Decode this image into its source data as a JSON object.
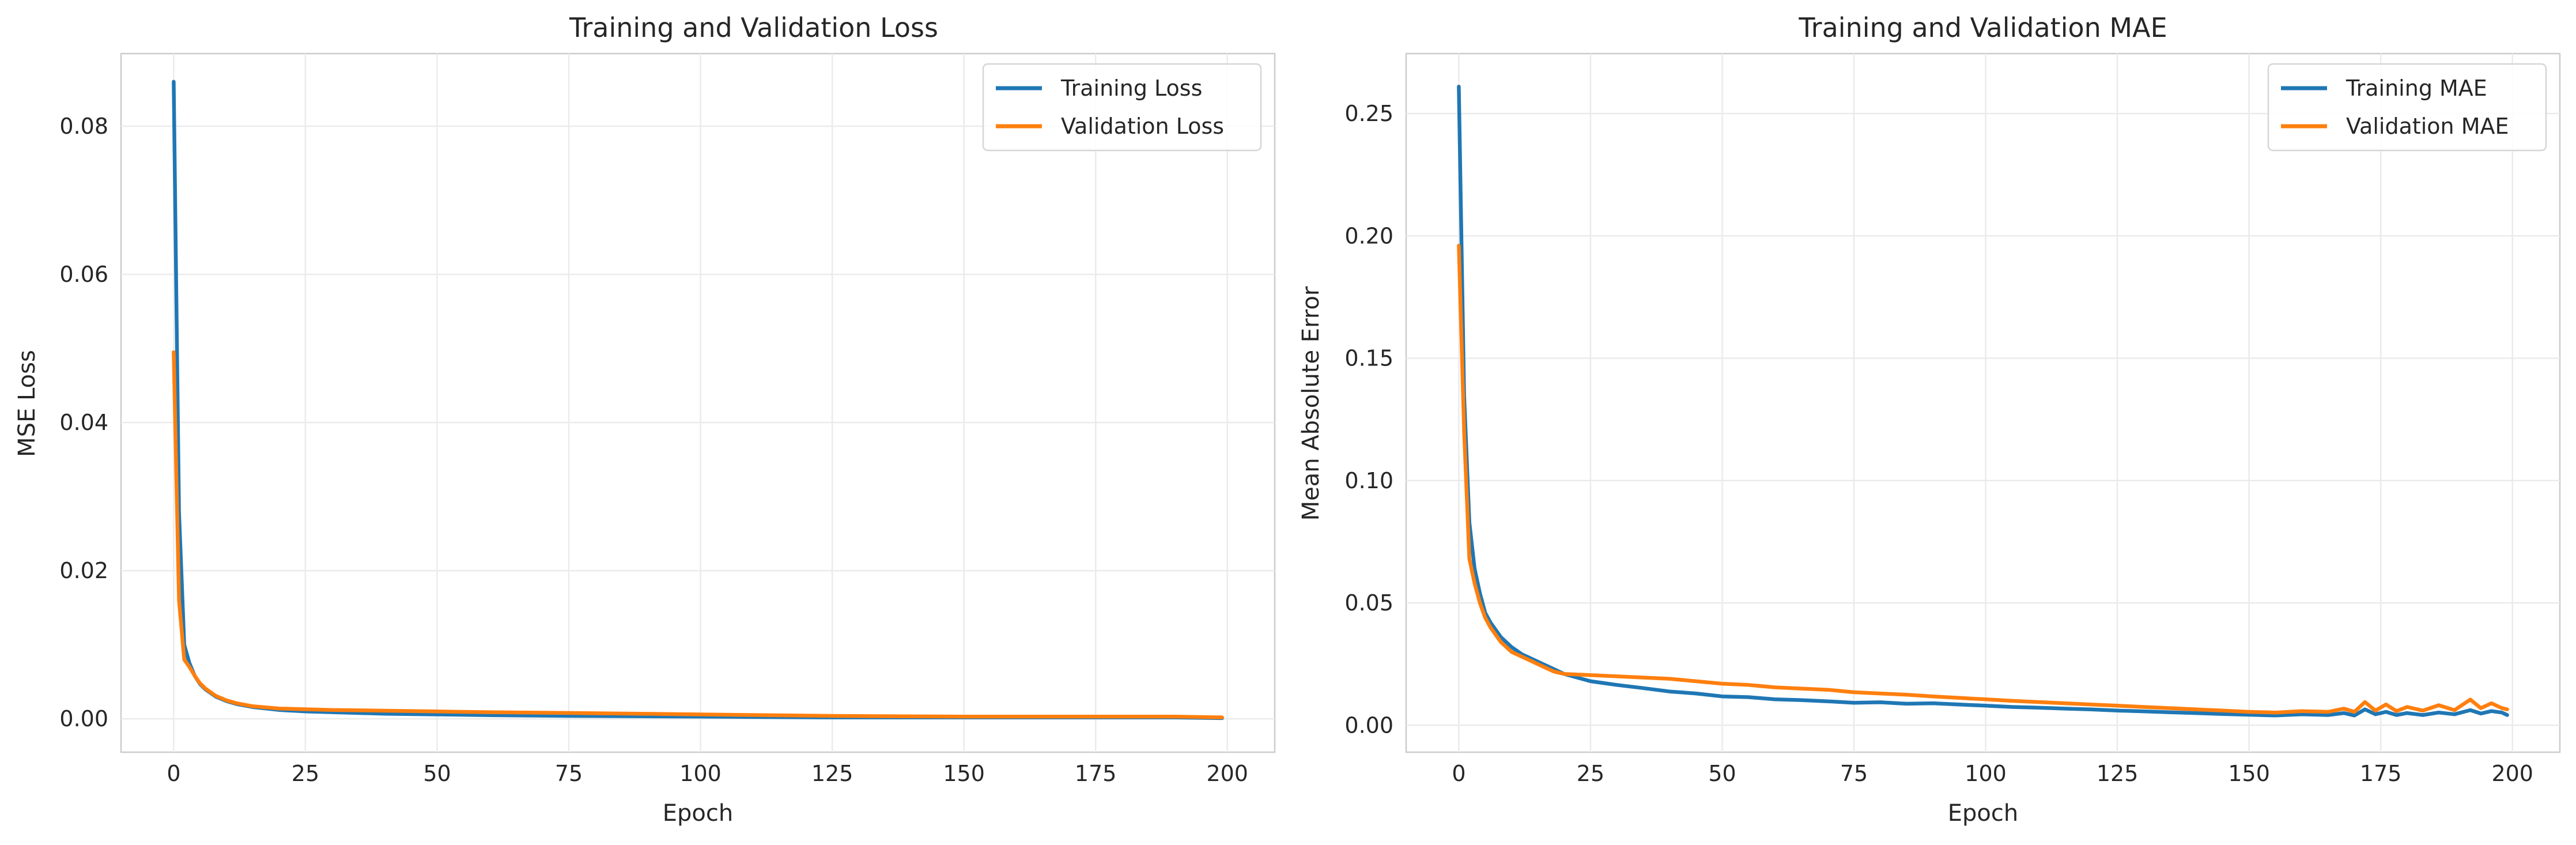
{
  "chart_data": [
    {
      "type": "line",
      "title": "Training and Validation Loss",
      "xlabel": "Epoch",
      "ylabel": "MSE Loss",
      "xlim": [
        -10,
        209
      ],
      "ylim": [
        -0.0045,
        0.0898
      ],
      "xticks": [
        0,
        25,
        50,
        75,
        100,
        125,
        150,
        175,
        200
      ],
      "yticks": [
        0.0,
        0.02,
        0.04,
        0.06,
        0.08
      ],
      "ytick_labels": [
        "0.00",
        "0.02",
        "0.04",
        "0.06",
        "0.08"
      ],
      "grid": true,
      "legend_loc": "upper right",
      "series": [
        {
          "name": "Training Loss",
          "color": "#1f77b4",
          "points": [
            [
              0,
              0.086
            ],
            [
              1,
              0.028
            ],
            [
              2,
              0.01
            ],
            [
              3,
              0.0075
            ],
            [
              4,
              0.0058
            ],
            [
              5,
              0.0047
            ],
            [
              6,
              0.004
            ],
            [
              8,
              0.003
            ],
            [
              10,
              0.0024
            ],
            [
              12,
              0.002
            ],
            [
              15,
              0.0016
            ],
            [
              20,
              0.0012
            ],
            [
              25,
              0.001
            ],
            [
              30,
              0.0009
            ],
            [
              40,
              0.0007
            ],
            [
              50,
              0.0006
            ],
            [
              60,
              0.0005
            ],
            [
              75,
              0.0004
            ],
            [
              100,
              0.0003
            ],
            [
              125,
              0.0002
            ],
            [
              150,
              0.0002
            ],
            [
              175,
              0.0002
            ],
            [
              190,
              0.0002
            ],
            [
              199,
              0.0001
            ]
          ]
        },
        {
          "name": "Validation Loss",
          "color": "#ff7f0e",
          "points": [
            [
              0,
              0.0495
            ],
            [
              1,
              0.016
            ],
            [
              2,
              0.008
            ],
            [
              3,
              0.007
            ],
            [
              4,
              0.0058
            ],
            [
              5,
              0.0048
            ],
            [
              6,
              0.0041
            ],
            [
              8,
              0.0031
            ],
            [
              10,
              0.0025
            ],
            [
              12,
              0.0021
            ],
            [
              15,
              0.0017
            ],
            [
              20,
              0.0014
            ],
            [
              25,
              0.0013
            ],
            [
              30,
              0.0012
            ],
            [
              40,
              0.0011
            ],
            [
              50,
              0.001
            ],
            [
              60,
              0.0009
            ],
            [
              75,
              0.0008
            ],
            [
              100,
              0.0006
            ],
            [
              125,
              0.0004
            ],
            [
              150,
              0.0003
            ],
            [
              175,
              0.0003
            ],
            [
              190,
              0.0003
            ],
            [
              199,
              0.0002
            ]
          ]
        }
      ]
    },
    {
      "type": "line",
      "title": "Training and Validation MAE",
      "xlabel": "Epoch",
      "ylabel": "Mean Absolute Error",
      "xlim": [
        -10,
        209
      ],
      "ylim": [
        -0.011,
        0.2745
      ],
      "xticks": [
        0,
        25,
        50,
        75,
        100,
        125,
        150,
        175,
        200
      ],
      "yticks": [
        0.0,
        0.05,
        0.1,
        0.15,
        0.2,
        0.25
      ],
      "ytick_labels": [
        "0.00",
        "0.05",
        "0.10",
        "0.15",
        "0.20",
        "0.25"
      ],
      "grid": true,
      "legend_loc": "upper right",
      "series": [
        {
          "name": "Training MAE",
          "color": "#1f77b4",
          "points": [
            [
              0,
              0.261
            ],
            [
              1,
              0.135
            ],
            [
              2,
              0.083
            ],
            [
              3,
              0.064
            ],
            [
              4,
              0.054
            ],
            [
              5,
              0.046
            ],
            [
              6,
              0.042
            ],
            [
              8,
              0.036
            ],
            [
              10,
              0.032
            ],
            [
              12,
              0.029
            ],
            [
              15,
              0.026
            ],
            [
              18,
              0.023
            ],
            [
              20,
              0.021
            ],
            [
              25,
              0.018
            ],
            [
              30,
              0.0165
            ],
            [
              35,
              0.0152
            ],
            [
              40,
              0.0138
            ],
            [
              45,
              0.013
            ],
            [
              50,
              0.0118
            ],
            [
              55,
              0.0115
            ],
            [
              60,
              0.0106
            ],
            [
              65,
              0.0103
            ],
            [
              70,
              0.0098
            ],
            [
              75,
              0.0092
            ],
            [
              80,
              0.0094
            ],
            [
              85,
              0.0088
            ],
            [
              90,
              0.009
            ],
            [
              95,
              0.0085
            ],
            [
              100,
              0.008
            ],
            [
              105,
              0.0075
            ],
            [
              110,
              0.0072
            ],
            [
              115,
              0.0068
            ],
            [
              120,
              0.0065
            ],
            [
              125,
              0.006
            ],
            [
              130,
              0.0057
            ],
            [
              135,
              0.0053
            ],
            [
              140,
              0.005
            ],
            [
              145,
              0.0046
            ],
            [
              150,
              0.0043
            ],
            [
              155,
              0.004
            ],
            [
              160,
              0.0045
            ],
            [
              165,
              0.0042
            ],
            [
              168,
              0.005
            ],
            [
              170,
              0.004
            ],
            [
              172,
              0.0065
            ],
            [
              174,
              0.0045
            ],
            [
              176,
              0.0055
            ],
            [
              178,
              0.0042
            ],
            [
              180,
              0.005
            ],
            [
              183,
              0.0042
            ],
            [
              186,
              0.0052
            ],
            [
              189,
              0.0045
            ],
            [
              192,
              0.0062
            ],
            [
              194,
              0.0048
            ],
            [
              196,
              0.0058
            ],
            [
              198,
              0.0052
            ],
            [
              199,
              0.0042
            ]
          ]
        },
        {
          "name": "Validation MAE",
          "color": "#ff7f0e",
          "points": [
            [
              0,
              0.196
            ],
            [
              1,
              0.12
            ],
            [
              2,
              0.068
            ],
            [
              3,
              0.058
            ],
            [
              4,
              0.05
            ],
            [
              5,
              0.044
            ],
            [
              6,
              0.04
            ],
            [
              8,
              0.034
            ],
            [
              10,
              0.03
            ],
            [
              12,
              0.028
            ],
            [
              15,
              0.025
            ],
            [
              18,
              0.022
            ],
            [
              20,
              0.021
            ],
            [
              25,
              0.0205
            ],
            [
              30,
              0.02
            ],
            [
              35,
              0.0195
            ],
            [
              40,
              0.019
            ],
            [
              45,
              0.018
            ],
            [
              50,
              0.017
            ],
            [
              55,
              0.0165
            ],
            [
              60,
              0.0155
            ],
            [
              65,
              0.015
            ],
            [
              70,
              0.0145
            ],
            [
              75,
              0.0135
            ],
            [
              80,
              0.013
            ],
            [
              85,
              0.0125
            ],
            [
              90,
              0.0118
            ],
            [
              95,
              0.0112
            ],
            [
              100,
              0.0106
            ],
            [
              105,
              0.01
            ],
            [
              110,
              0.0095
            ],
            [
              115,
              0.009
            ],
            [
              120,
              0.0085
            ],
            [
              125,
              0.008
            ],
            [
              130,
              0.0075
            ],
            [
              135,
              0.007
            ],
            [
              140,
              0.0065
            ],
            [
              145,
              0.006
            ],
            [
              150,
              0.0055
            ],
            [
              155,
              0.0052
            ],
            [
              160,
              0.0058
            ],
            [
              165,
              0.0055
            ],
            [
              168,
              0.0068
            ],
            [
              170,
              0.0055
            ],
            [
              172,
              0.0095
            ],
            [
              174,
              0.006
            ],
            [
              176,
              0.0085
            ],
            [
              178,
              0.0058
            ],
            [
              180,
              0.0075
            ],
            [
              183,
              0.006
            ],
            [
              186,
              0.0082
            ],
            [
              189,
              0.0062
            ],
            [
              192,
              0.0105
            ],
            [
              194,
              0.007
            ],
            [
              196,
              0.009
            ],
            [
              198,
              0.007
            ],
            [
              199,
              0.0065
            ]
          ]
        }
      ]
    }
  ]
}
